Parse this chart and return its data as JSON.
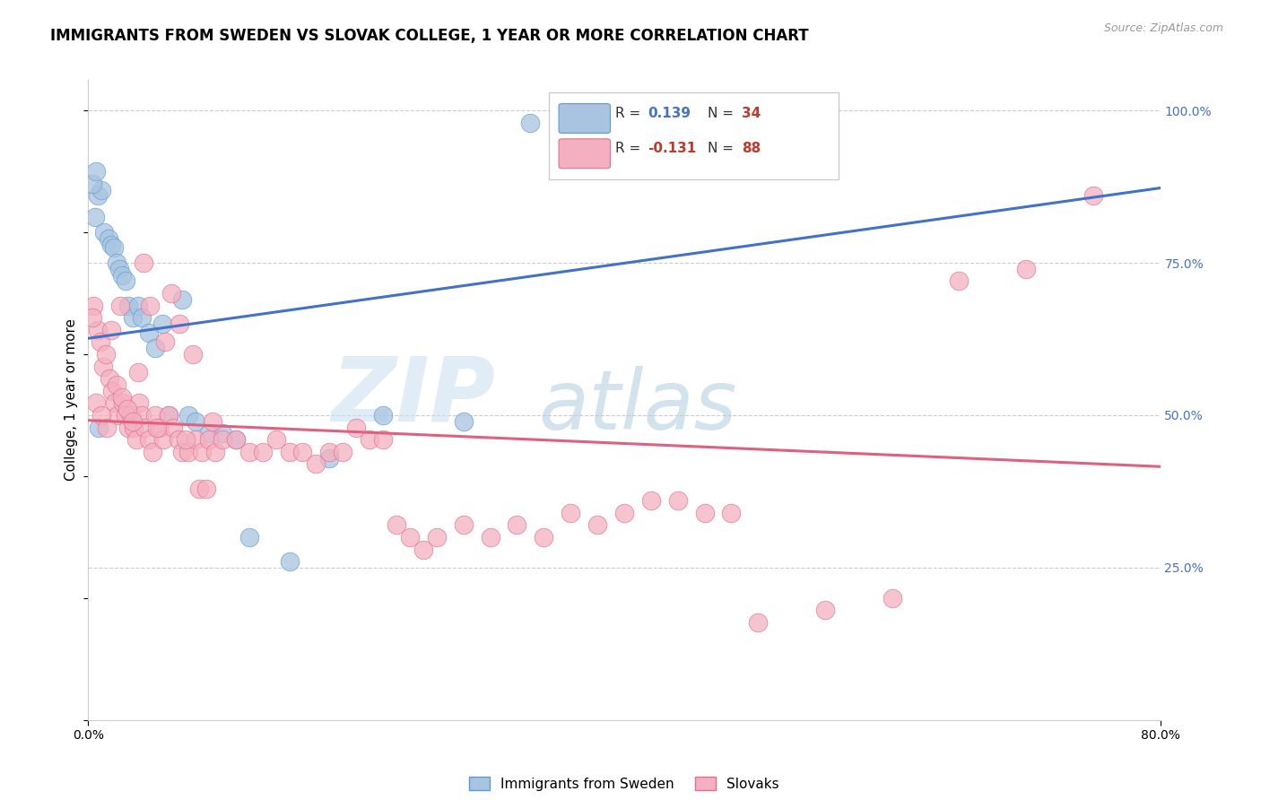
{
  "title": "IMMIGRANTS FROM SWEDEN VS SLOVAK COLLEGE, 1 YEAR OR MORE CORRELATION CHART",
  "source": "Source: ZipAtlas.com",
  "ylabel": "College, 1 year or more",
  "legend_label_blue": "Immigrants from Sweden",
  "legend_label_pink": "Slovaks",
  "blue_color": "#a8c4e0",
  "blue_edge_color": "#5b9bd5",
  "pink_color": "#f4b0c0",
  "pink_edge_color": "#e07090",
  "blue_line_color": "#4472c4",
  "pink_line_color": "#e06080",
  "dash_line_color": "#b8d0e8",
  "xlim": [
    0.0,
    0.8
  ],
  "ylim": [
    0.0,
    1.05
  ],
  "xtick_vals": [
    0.0,
    0.8
  ],
  "xtick_labels": [
    "0.0%",
    "80.0%"
  ],
  "ytick_vals_right": [
    0.25,
    0.5,
    0.75,
    1.0
  ],
  "ytick_labels_right": [
    "25.0%",
    "50.0%",
    "75.0%",
    "100.0%"
  ],
  "blue_r": 0.139,
  "blue_n": 34,
  "pink_r": -0.131,
  "pink_n": 88,
  "blue_x": [
    0.005,
    0.007,
    0.01,
    0.012,
    0.015,
    0.017,
    0.019,
    0.021,
    0.023,
    0.025,
    0.028,
    0.03,
    0.033,
    0.037,
    0.04,
    0.045,
    0.05,
    0.055,
    0.06,
    0.07,
    0.075,
    0.08,
    0.09,
    0.1,
    0.11,
    0.12,
    0.15,
    0.18,
    0.22,
    0.28,
    0.33,
    0.003,
    0.006,
    0.008
  ],
  "blue_y": [
    0.825,
    0.86,
    0.87,
    0.8,
    0.79,
    0.78,
    0.775,
    0.75,
    0.74,
    0.73,
    0.72,
    0.68,
    0.66,
    0.68,
    0.66,
    0.635,
    0.61,
    0.65,
    0.5,
    0.69,
    0.5,
    0.49,
    0.47,
    0.47,
    0.46,
    0.3,
    0.26,
    0.43,
    0.5,
    0.49,
    0.98,
    0.88,
    0.9,
    0.48
  ],
  "pink_x": [
    0.004,
    0.007,
    0.009,
    0.011,
    0.013,
    0.016,
    0.018,
    0.02,
    0.022,
    0.024,
    0.026,
    0.028,
    0.03,
    0.032,
    0.034,
    0.036,
    0.038,
    0.04,
    0.042,
    0.045,
    0.048,
    0.05,
    0.053,
    0.056,
    0.06,
    0.063,
    0.067,
    0.07,
    0.075,
    0.08,
    0.085,
    0.09,
    0.095,
    0.1,
    0.11,
    0.12,
    0.13,
    0.14,
    0.15,
    0.16,
    0.17,
    0.18,
    0.19,
    0.2,
    0.21,
    0.22,
    0.23,
    0.24,
    0.25,
    0.26,
    0.28,
    0.3,
    0.32,
    0.34,
    0.36,
    0.38,
    0.4,
    0.42,
    0.44,
    0.46,
    0.48,
    0.5,
    0.55,
    0.6,
    0.65,
    0.7,
    0.75,
    0.003,
    0.006,
    0.01,
    0.014,
    0.017,
    0.021,
    0.025,
    0.029,
    0.033,
    0.037,
    0.041,
    0.046,
    0.051,
    0.057,
    0.062,
    0.068,
    0.073,
    0.078,
    0.083,
    0.088,
    0.093
  ],
  "pink_y": [
    0.68,
    0.64,
    0.62,
    0.58,
    0.6,
    0.56,
    0.54,
    0.52,
    0.5,
    0.68,
    0.52,
    0.5,
    0.48,
    0.5,
    0.48,
    0.46,
    0.52,
    0.5,
    0.48,
    0.46,
    0.44,
    0.5,
    0.48,
    0.46,
    0.5,
    0.48,
    0.46,
    0.44,
    0.44,
    0.46,
    0.44,
    0.46,
    0.44,
    0.46,
    0.46,
    0.44,
    0.44,
    0.46,
    0.44,
    0.44,
    0.42,
    0.44,
    0.44,
    0.48,
    0.46,
    0.46,
    0.32,
    0.3,
    0.28,
    0.3,
    0.32,
    0.3,
    0.32,
    0.3,
    0.34,
    0.32,
    0.34,
    0.36,
    0.36,
    0.34,
    0.34,
    0.16,
    0.18,
    0.2,
    0.72,
    0.74,
    0.86,
    0.66,
    0.52,
    0.5,
    0.48,
    0.64,
    0.55,
    0.53,
    0.51,
    0.49,
    0.57,
    0.75,
    0.68,
    0.48,
    0.62,
    0.7,
    0.65,
    0.46,
    0.6,
    0.38,
    0.38,
    0.49
  ]
}
